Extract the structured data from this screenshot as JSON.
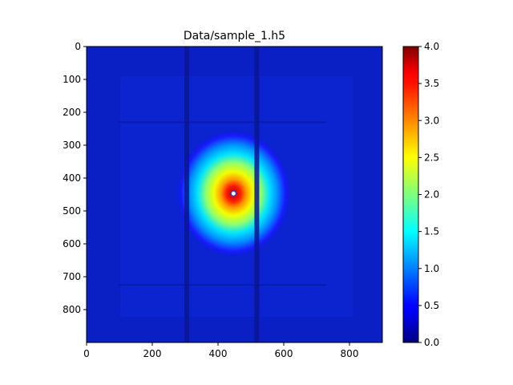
{
  "chart_data": {
    "type": "heatmap",
    "title": "Data/sample_1.h5",
    "xlabel": "",
    "ylabel": "",
    "xlim": [
      0,
      900
    ],
    "ylim": [
      900,
      0
    ],
    "x_ticks": [
      0,
      200,
      400,
      600,
      800
    ],
    "y_ticks": [
      0,
      100,
      200,
      300,
      400,
      500,
      600,
      700,
      800
    ],
    "x_tick_labels": [
      "0",
      "200",
      "400",
      "600",
      "800"
    ],
    "y_tick_labels": [
      "0",
      "100",
      "200",
      "300",
      "400",
      "500",
      "600",
      "700",
      "800"
    ],
    "colormap": "jet",
    "colorbar": {
      "range": [
        0.0,
        4.0
      ],
      "ticks": [
        0.0,
        0.5,
        1.0,
        1.5,
        2.0,
        2.5,
        3.0,
        3.5,
        4.0
      ],
      "tick_labels": [
        "0.0",
        "0.5",
        "1.0",
        "1.5",
        "2.0",
        "2.5",
        "3.0",
        "3.5",
        "4.0"
      ]
    },
    "beam_center": [
      447,
      447
    ],
    "peak_value": 4.0,
    "background_value": 0.1,
    "detector_gaps": {
      "vertical_x": [
        305,
        518
      ],
      "horizontal_y": [
        230,
        725
      ]
    },
    "grid": false
  }
}
